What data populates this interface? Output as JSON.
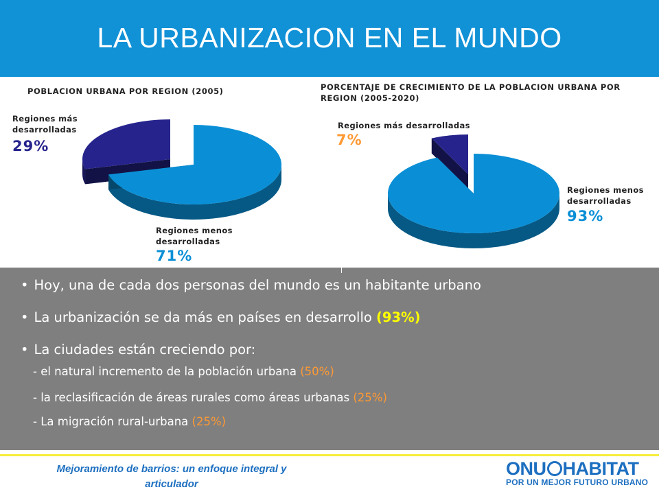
{
  "title": "LA URBANIZACION EN EL MUNDO",
  "chart_data": [
    {
      "type": "pie",
      "title": "POBLACION URBANA POR REGION (2005)",
      "slices": [
        {
          "label": "Regiones más desarrolladas",
          "value": 29,
          "display": "29%",
          "color": "#26248c"
        },
        {
          "label": "Regiones menos desarrolladas",
          "value": 71,
          "display": "71%",
          "color": "#0a8fd6"
        }
      ]
    },
    {
      "type": "pie",
      "title": "PORCENTAJE DE CRECIMIENTO  DE LA POBLACION URBANA POR REGION (2005-2020)",
      "slices": [
        {
          "label": "Regiones más desarrolladas",
          "value": 7,
          "display": "7%",
          "color": "#26248c"
        },
        {
          "label": "Regiones menos desarrolladas",
          "value": 93,
          "display": "93%",
          "color": "#0a8fd6"
        }
      ]
    }
  ],
  "chart1": {
    "title": "POBLACION URBANA POR REGION (2005)",
    "more_label_1": "Regiones más",
    "more_label_2": "desarrolladas",
    "more_pct": "29%",
    "less_label_1": "Regiones menos",
    "less_label_2": "desarrolladas",
    "less_pct": "71%"
  },
  "chart2": {
    "title_1": "PORCENTAJE DE CRECIMIENTO  DE LA POBLACION URBANA POR",
    "title_2": "REGION (2005-2020)",
    "more_label": "Regiones más desarrolladas",
    "more_pct": "7%",
    "less_label_1": "Regiones menos",
    "less_label_2": "desarrolladas",
    "less_pct": "93%"
  },
  "bullets": {
    "b1": "Hoy, una de cada dos personas del mundo es un habitante urbano",
    "b2_text": "La urbanización se da más en países en desarrollo ",
    "b2_highlight": "(93%)",
    "b3": "La ciudades están creciendo por:",
    "s1_text": "- el natural incremento de la población urbana ",
    "s1_highlight": "(50%)",
    "s2_text": "- la reclasificación de áreas rurales como áreas urbanas ",
    "s2_highlight": "(25%)",
    "s3_text": "- La migración rural-urbana ",
    "s3_highlight": "(25%)"
  },
  "footer": {
    "line1": "Mejoramiento de barrios: un enfoque integral y",
    "line2": "articulador",
    "logo_left": "ONU",
    "logo_right": "HABITAT",
    "logo_tagline": "POR UN MEJOR FUTURO URBANO"
  },
  "colors": {
    "header": "#1191d6",
    "panel": "#7f7f7f",
    "dark_slice": "#26248c",
    "light_slice": "#0a8fd6",
    "orange": "#ff9933",
    "yellow": "#ffff00",
    "footer_text": "#1d6fc0"
  }
}
